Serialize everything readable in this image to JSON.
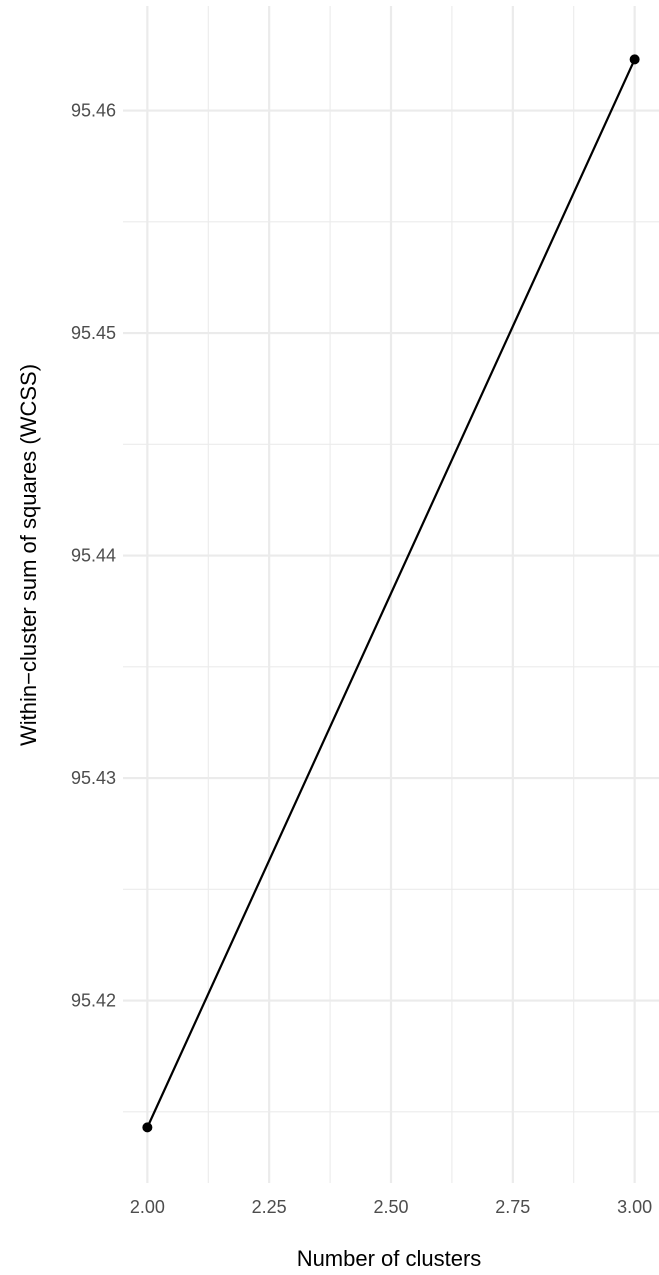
{
  "chart_data": {
    "type": "line",
    "title": "",
    "xlabel": "Number of clusters",
    "ylabel": "Within−cluster sum of squares (WCSS)",
    "xlim": [
      1.95,
      3.05
    ],
    "ylim": [
      95.4118,
      95.4647
    ],
    "x_ticks": [
      "2.00",
      "2.25",
      "2.50",
      "2.75",
      "3.00"
    ],
    "x_tick_values": [
      2.0,
      2.25,
      2.5,
      2.75,
      3.0
    ],
    "y_ticks": [
      "95.42",
      "95.43",
      "95.44",
      "95.45",
      "95.46"
    ],
    "y_tick_values": [
      95.42,
      95.43,
      95.44,
      95.45,
      95.46
    ],
    "grid": true,
    "series": [
      {
        "x": [
          2,
          3
        ],
        "y": [
          95.4143,
          95.4623
        ],
        "color": "#000000"
      }
    ]
  }
}
